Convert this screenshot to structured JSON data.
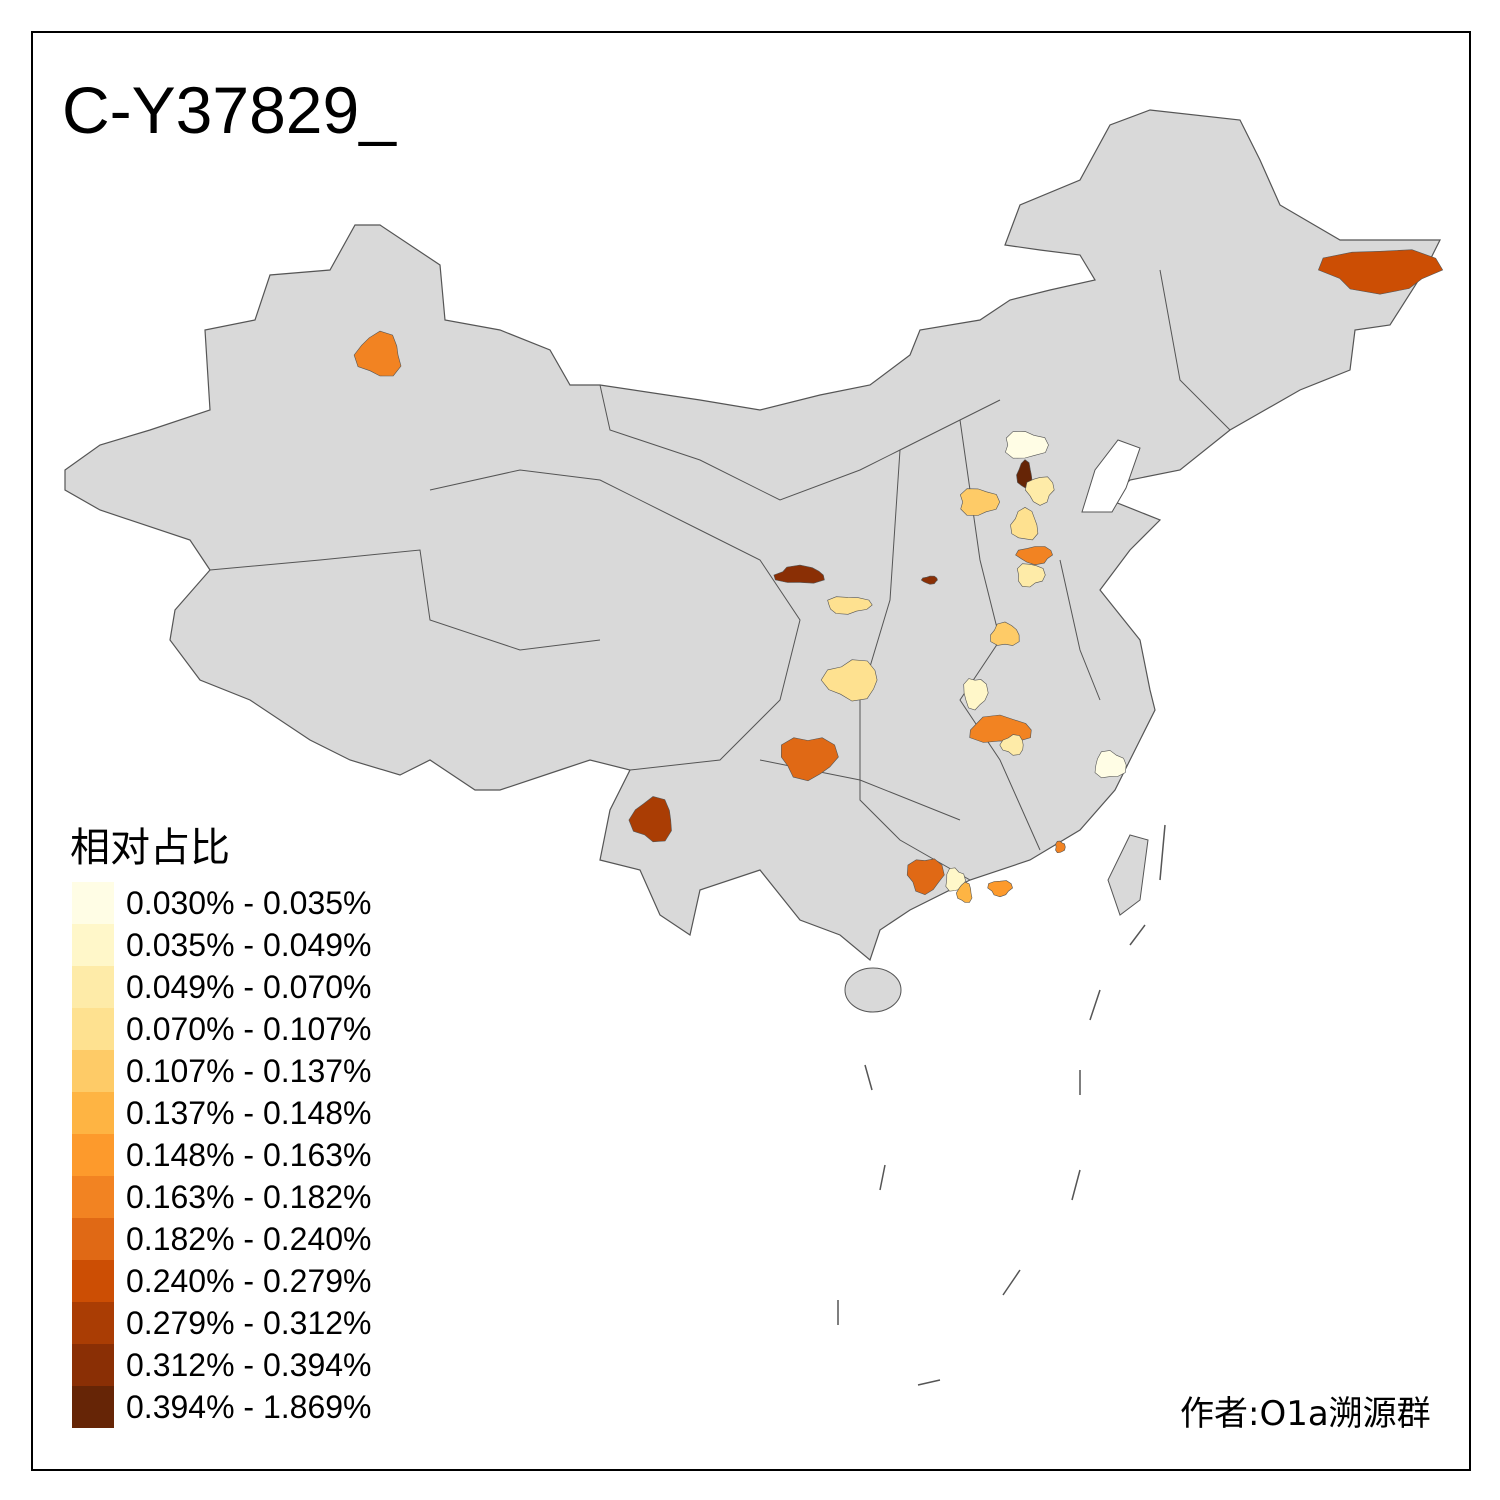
{
  "title": "C-Y37829_",
  "legend": {
    "title": "相对占比",
    "bins": [
      {
        "label": "0.030% - 0.035%",
        "color": "#fffde5"
      },
      {
        "label": "0.035% - 0.049%",
        "color": "#fff7c9"
      },
      {
        "label": "0.049% - 0.070%",
        "color": "#feeba8"
      },
      {
        "label": "0.070% - 0.107%",
        "color": "#fee190"
      },
      {
        "label": "0.107% - 0.137%",
        "color": "#fecb67"
      },
      {
        "label": "0.137% - 0.148%",
        "color": "#feb443"
      },
      {
        "label": "0.148% - 0.163%",
        "color": "#fd9a2c"
      },
      {
        "label": "0.163% - 0.182%",
        "color": "#f28322"
      },
      {
        "label": "0.182% - 0.240%",
        "color": "#e06915"
      },
      {
        "label": "0.240% - 0.279%",
        "color": "#cc4e04"
      },
      {
        "label": "0.279% - 0.312%",
        "color": "#aa3d04"
      },
      {
        "label": "0.312% - 0.394%",
        "color": "#8a2f05"
      },
      {
        "label": "0.394% - 1.869%",
        "color": "#662506"
      }
    ]
  },
  "colors": {
    "base_region": "#d9d9d9",
    "border": "#555555"
  },
  "region_bins": [
    7,
    9,
    0,
    12,
    2,
    4,
    3,
    7,
    2,
    11,
    11,
    3,
    4,
    3,
    1,
    7,
    2,
    8,
    0,
    10,
    8,
    1,
    5,
    6,
    7
  ],
  "author": "作者:O1a溯源群"
}
